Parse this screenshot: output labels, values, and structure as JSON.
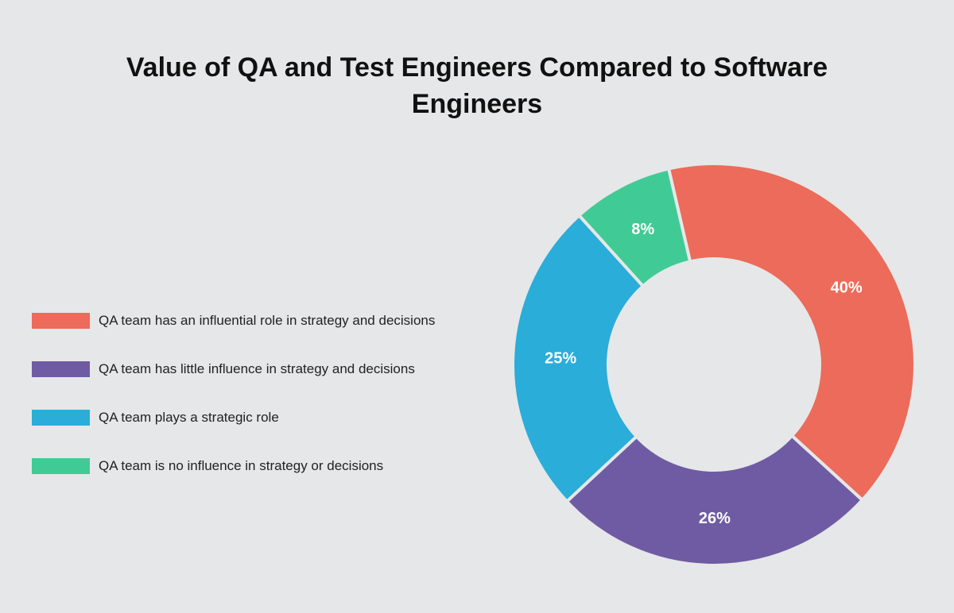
{
  "chart_data": {
    "type": "pie",
    "variant": "donut",
    "title": "Value of QA and Test Engineers Compared to Software Engineers",
    "legend_position": "left",
    "categories": [
      "QA team has an influential role in strategy and decisions",
      "QA team has little influence in strategy and decisions",
      "QA team plays a strategic role",
      "QA team is no influence in strategy or decisions"
    ],
    "values": [
      40,
      26,
      25,
      8
    ],
    "data_labels": [
      "40%",
      "26%",
      "25%",
      "8%"
    ],
    "colors": [
      "#ec6b5a",
      "#6f5ba3",
      "#2aadd9",
      "#40cb96"
    ]
  }
}
